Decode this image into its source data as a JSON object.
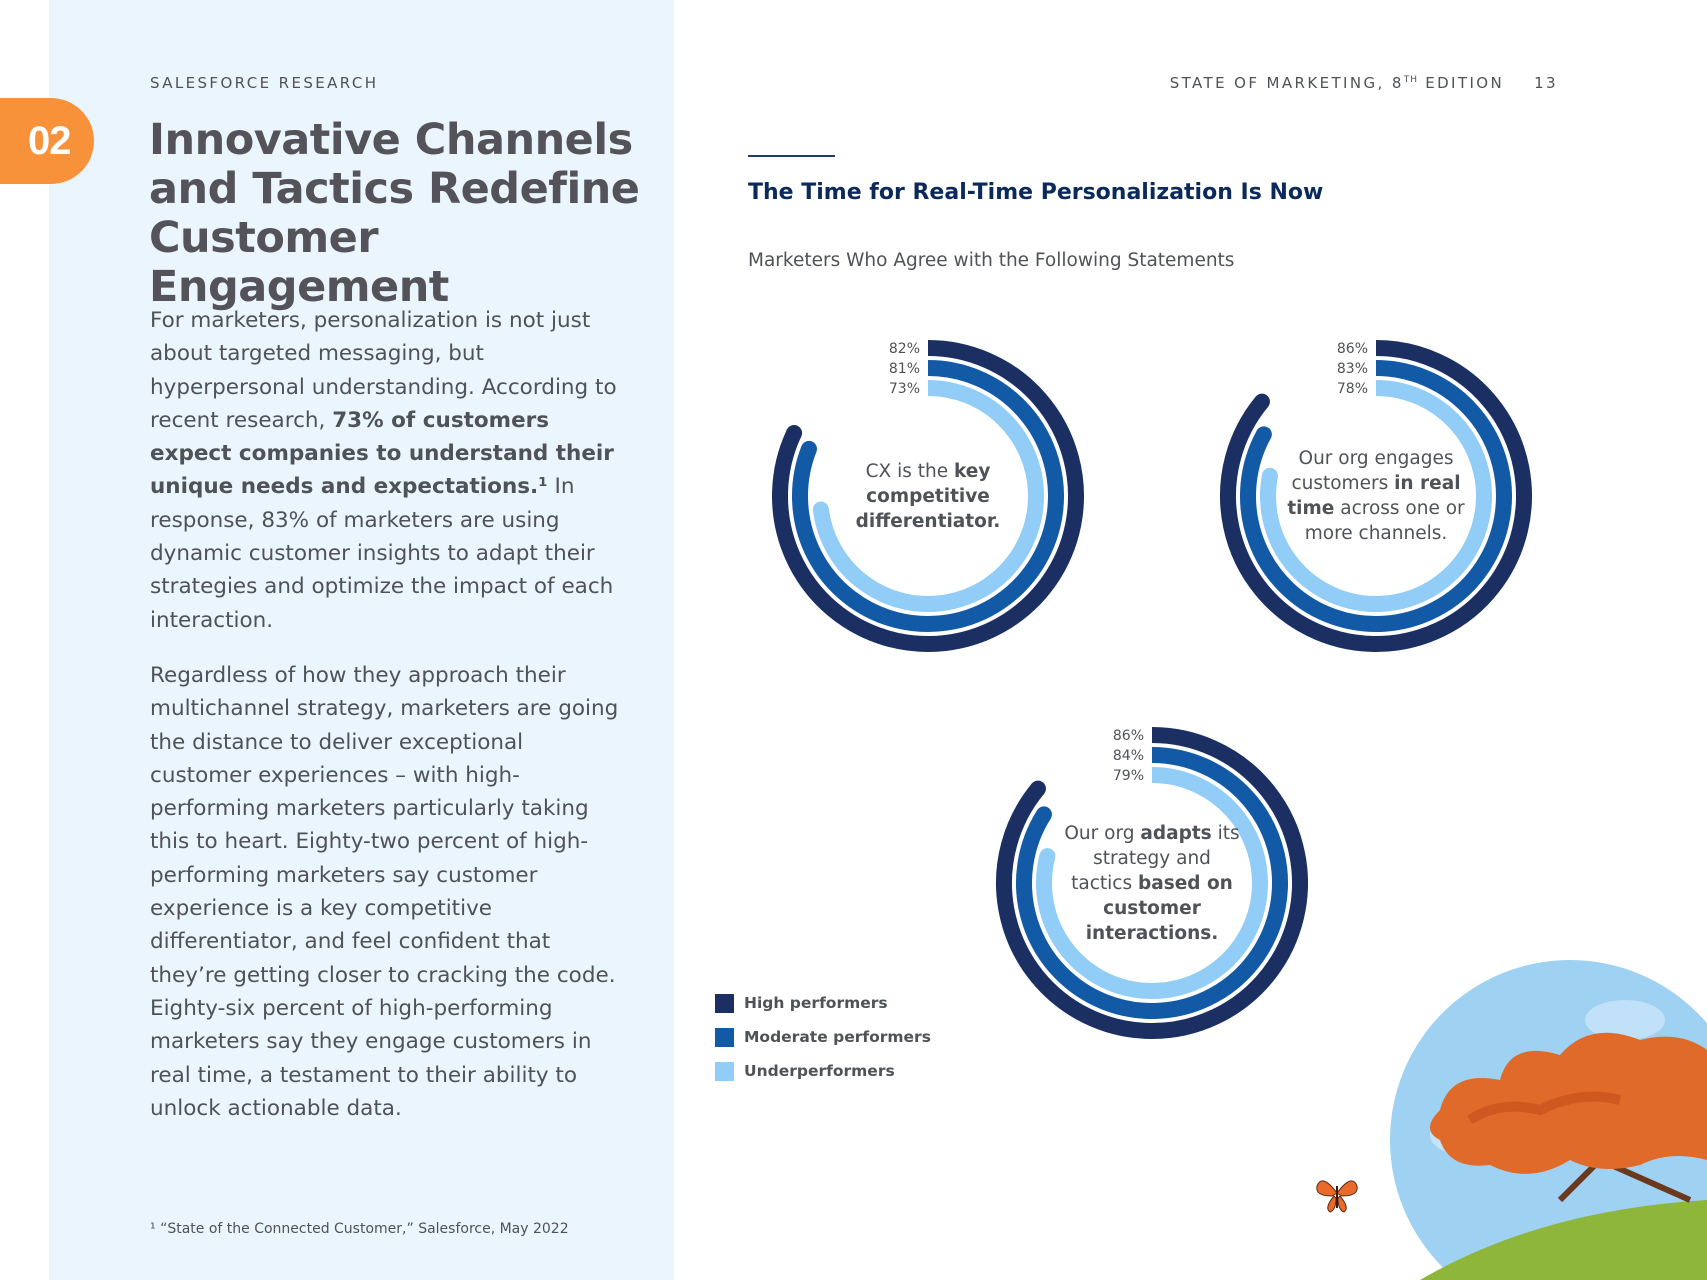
{
  "chapter": {
    "number": "02"
  },
  "header": {
    "left_label": "SALESFORCE RESEARCH",
    "report_title_prefix": "STATE OF MARKETING, 8",
    "report_title_sup": "TH",
    "report_title_suffix": " EDITION",
    "page_number": "13"
  },
  "title_lines": [
    "Innovative Channels",
    "and Tactics Redefine",
    "Customer Engagement"
  ],
  "body": {
    "para1_a": "For marketers, personalization is not just about targeted messaging, but hyperpersonal understanding. According to recent research, ",
    "para1_bold": "73% of customers expect companies to understand their unique needs and expectations.¹",
    "para1_b": " In response, 83% of marketers are using dynamic customer insights to adapt their strategies and optimize the impact of each interaction.",
    "para2": "Regardless of how they approach their multichannel strategy, marketers are going the distance to deliver exceptional customer experiences – with high-performing marketers particularly taking this to heart. Eighty-two percent of high-performing marketers say customer experience is a key competitive differentiator, and feel confident that they’re getting closer to cracking the code. Eighty-six percent of high-performing marketers say they engage customers in real time, a testament to their ability to unlock actionable data."
  },
  "footnote": "¹ “State of the Connected Customer,” Salesforce, May 2022",
  "chart_header": {
    "title": "The Time for Real-Time Personalization Is Now",
    "subtitle": "Marketers Who Agree with the Following Statements"
  },
  "colors": {
    "high": "#1b2f63",
    "moderate": "#125aa6",
    "under": "#91cdf6",
    "badge": "#f7923b",
    "panel": "#eaf5fe"
  },
  "chart_data": {
    "type": "radial-bar",
    "unit": "%",
    "series_names": [
      "High performers",
      "Moderate performers",
      "Underperformers"
    ],
    "charts": [
      {
        "statement_parts": [
          {
            "t": "CX is the "
          },
          {
            "t": "key competitive differentiator.",
            "b": true
          }
        ],
        "values": [
          82,
          81,
          73
        ],
        "labels": [
          "82%",
          "81%",
          "73%"
        ]
      },
      {
        "statement_parts": [
          {
            "t": "Our org engages customers "
          },
          {
            "t": "in real time",
            "b": true
          },
          {
            "t": " across one or more channels."
          }
        ],
        "values": [
          86,
          83,
          78
        ],
        "labels": [
          "86%",
          "83%",
          "78%"
        ]
      },
      {
        "statement_parts": [
          {
            "t": "Our org "
          },
          {
            "t": "adapts",
            "b": true
          },
          {
            "t": " its strategy and tactics "
          },
          {
            "t": "based on customer interactions.",
            "b": true
          }
        ],
        "values": [
          86,
          84,
          79
        ],
        "labels": [
          "86%",
          "84%",
          "79%"
        ]
      }
    ]
  }
}
